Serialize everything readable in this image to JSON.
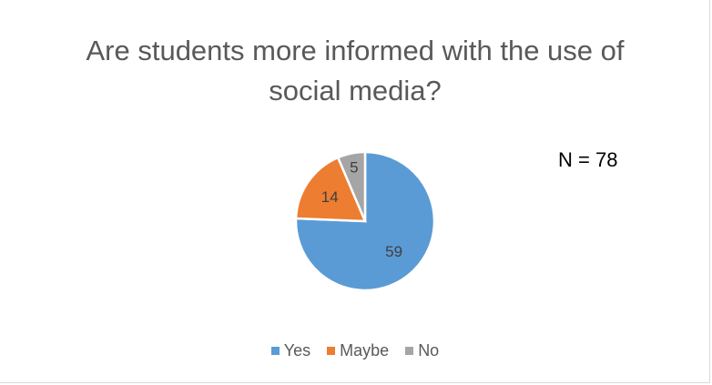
{
  "chart_data": {
    "type": "pie",
    "title": "Are students more informed with the use of social media?",
    "categories": [
      "Yes",
      "Maybe",
      "No"
    ],
    "values": [
      59,
      14,
      5
    ],
    "colors": [
      "#5b9bd5",
      "#ed7d31",
      "#a5a5a5"
    ],
    "data_labels": [
      "59",
      "14",
      "5"
    ],
    "annotation": "N = 78",
    "legend_position": "bottom"
  }
}
